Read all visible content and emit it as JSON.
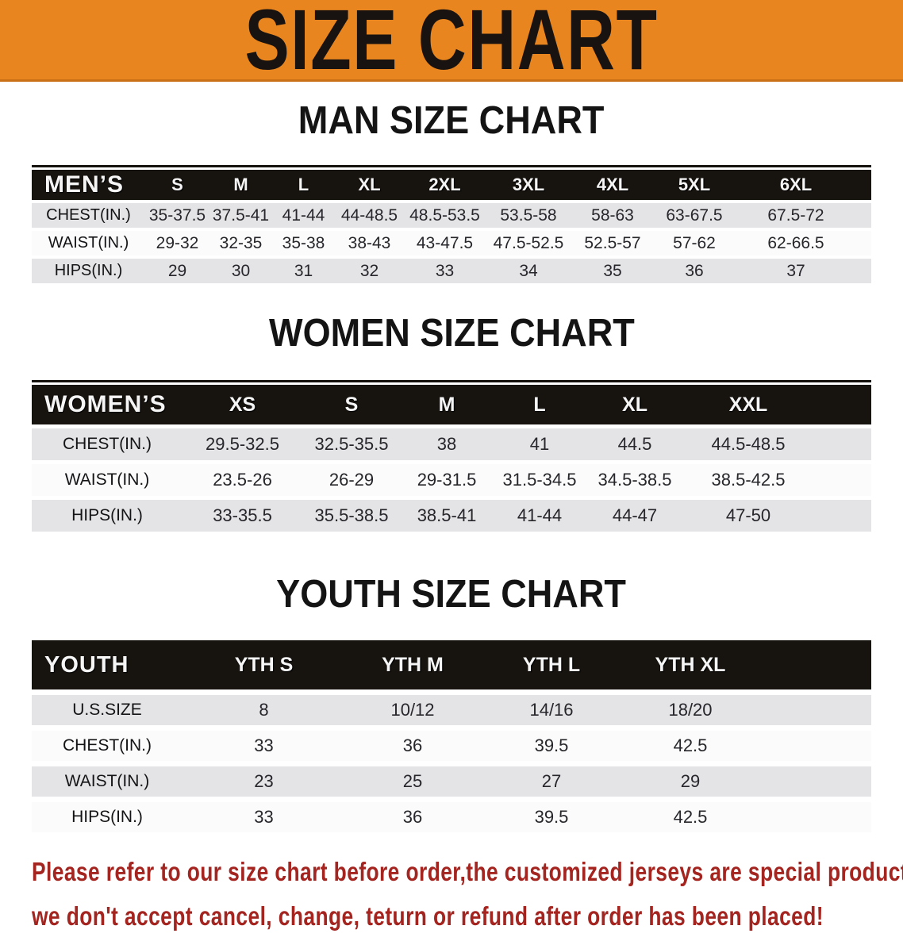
{
  "banner": {
    "title": "SIZE CHART"
  },
  "chart_data": [
    {
      "type": "table",
      "title": "MAN SIZE CHART",
      "corner_label": "MEN’S",
      "columns": [
        "S",
        "M",
        "L",
        "XL",
        "2XL",
        "3XL",
        "4XL",
        "5XL",
        "6XL"
      ],
      "rows": [
        {
          "label": "CHEST(IN.)",
          "values": [
            "35-37.5",
            "37.5-41",
            "41-44",
            "44-48.5",
            "48.5-53.5",
            "53.5-58",
            "58-63",
            "63-67.5",
            "67.5-72"
          ]
        },
        {
          "label": "WAIST(IN.)",
          "values": [
            "29-32",
            "32-35",
            "35-38",
            "38-43",
            "43-47.5",
            "47.5-52.5",
            "52.5-57",
            "57-62",
            "62-66.5"
          ]
        },
        {
          "label": "HIPS(IN.)",
          "values": [
            "29",
            "30",
            "31",
            "32",
            "33",
            "34",
            "35",
            "36",
            "37"
          ]
        }
      ]
    },
    {
      "type": "table",
      "title": "WOMEN SIZE CHART",
      "corner_label": "WOMEN’S",
      "columns": [
        "XS",
        "S",
        "M",
        "L",
        "XL",
        "XXL"
      ],
      "rows": [
        {
          "label": "CHEST(IN.)",
          "values": [
            "29.5-32.5",
            "32.5-35.5",
            "38",
            "41",
            "44.5",
            "44.5-48.5"
          ]
        },
        {
          "label": "WAIST(IN.)",
          "values": [
            "23.5-26",
            "26-29",
            "29-31.5",
            "31.5-34.5",
            "34.5-38.5",
            "38.5-42.5"
          ]
        },
        {
          "label": "HIPS(IN.)",
          "values": [
            "33-35.5",
            "35.5-38.5",
            "38.5-41",
            "41-44",
            "44-47",
            "47-50"
          ]
        }
      ]
    },
    {
      "type": "table",
      "title": "YOUTH SIZE CHART",
      "corner_label": "YOUTH",
      "columns": [
        "YTH S",
        "YTH M",
        "YTH L",
        "YTH XL"
      ],
      "rows": [
        {
          "label": "U.S.SIZE",
          "values": [
            "8",
            "10/12",
            "14/16",
            "18/20"
          ]
        },
        {
          "label": "CHEST(IN.)",
          "values": [
            "33",
            "36",
            "39.5",
            "42.5"
          ]
        },
        {
          "label": "WAIST(IN.)",
          "values": [
            "23",
            "25",
            "27",
            "29"
          ]
        },
        {
          "label": "HIPS(IN.)",
          "values": [
            "33",
            "36",
            "39.5",
            "42.5"
          ]
        }
      ]
    }
  ],
  "footer": {
    "line1": "Please refer to our size chart before order,the customized jerseys are special products,",
    "line2": "we don't accept cancel, change, teturn or refund after order has been placed!"
  },
  "colors": {
    "banner_orange": "#e8851e",
    "header_black": "#17130f",
    "row_gray": "#e4e4e7",
    "row_white": "#fbfbfb",
    "footer_red": "#a42420"
  }
}
